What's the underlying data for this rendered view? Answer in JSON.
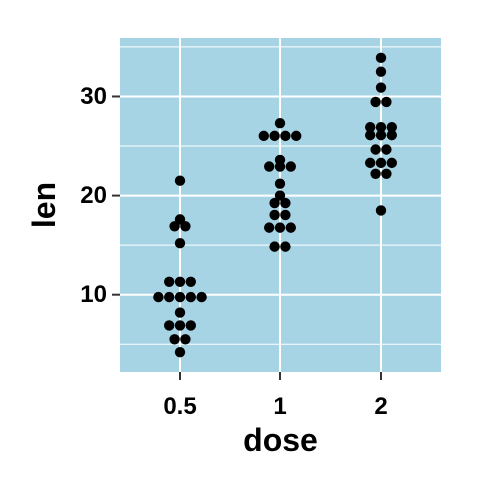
{
  "chart_data": {
    "type": "dotplot",
    "xlabel": "dose",
    "ylabel": "len",
    "categories": [
      "0.5",
      "1",
      "2"
    ],
    "ylim": [
      2.2,
      35.9
    ],
    "y_ticks": [
      10,
      20,
      30
    ],
    "grid": true,
    "legend": "none",
    "colors": {
      "panel": "#a6d4e4",
      "grid": "#ffffff",
      "dot": "#000000",
      "axis": "#333333"
    },
    "groups": [
      {
        "category": "0.5",
        "values": [
          4.2,
          5.2,
          5.8,
          6.4,
          7.0,
          7.3,
          8.2,
          9.4,
          9.7,
          9.7,
          10.0,
          10.0,
          11.2,
          11.2,
          11.5,
          15.2,
          16.5,
          17.3,
          17.6,
          21.5
        ]
      },
      {
        "category": "1",
        "values": [
          14.5,
          15.2,
          16.5,
          16.5,
          17.3,
          17.6,
          18.5,
          18.8,
          19.7,
          20.0,
          21.2,
          22.5,
          23.0,
          23.3,
          23.6,
          25.5,
          25.8,
          26.4,
          26.4,
          27.3
        ]
      },
      {
        "category": "2",
        "values": [
          18.5,
          22.0,
          22.4,
          23.0,
          23.3,
          23.6,
          24.5,
          24.8,
          25.5,
          26.4,
          26.4,
          26.7,
          26.7,
          27.3,
          29.4,
          29.5,
          30.9,
          32.5,
          33.9
        ]
      }
    ]
  }
}
